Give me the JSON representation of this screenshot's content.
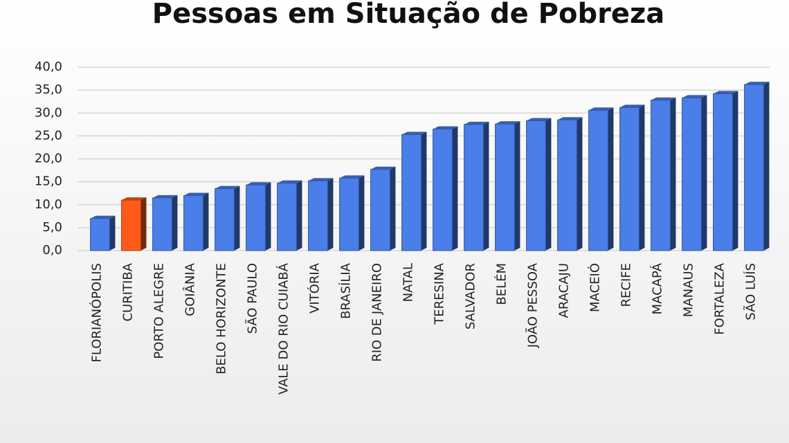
{
  "chart_data": {
    "type": "bar",
    "title": "Pessoas em Situação de Pobreza",
    "categories": [
      "FLORIANÓPOLIS",
      "CURITIBA",
      "PORTO ALEGRE",
      "GOIÂNIA",
      "BELO HORIZONTE",
      "SÃO PAULO",
      "VALE DO RIO CUIABÁ",
      "VITÓRIA",
      "BRASÍLIA",
      "RIO DE JANEIRO",
      "NATAL",
      "TERESINA",
      "SALVADOR",
      "BELÉM",
      "JOÃO PESSOA",
      "ARACAJU",
      "MACEIÓ",
      "RECIFE",
      "MACAPÁ",
      "MANAUS",
      "FORTALEZA",
      "SÃO LUÍS"
    ],
    "values": [
      7.0,
      11.0,
      11.5,
      12.0,
      13.5,
      14.3,
      14.7,
      15.2,
      15.8,
      17.7,
      25.3,
      26.5,
      27.5,
      27.6,
      28.3,
      28.5,
      30.6,
      31.2,
      32.8,
      33.3,
      34.2,
      36.2
    ],
    "colors": [
      "#4a7ee8",
      "#ff5a1a",
      "#4a7ee8",
      "#4a7ee8",
      "#4a7ee8",
      "#4a7ee8",
      "#4a7ee8",
      "#4a7ee8",
      "#4a7ee8",
      "#4a7ee8",
      "#4a7ee8",
      "#4a7ee8",
      "#4a7ee8",
      "#4a7ee8",
      "#4a7ee8",
      "#4a7ee8",
      "#4a7ee8",
      "#4a7ee8",
      "#4a7ee8",
      "#4a7ee8",
      "#4a7ee8",
      "#4a7ee8"
    ],
    "ylim": [
      0,
      40
    ],
    "yticks": [
      {
        "value": 0,
        "label": "0,0"
      },
      {
        "value": 5,
        "label": "5,0"
      },
      {
        "value": 10,
        "label": "10,0"
      },
      {
        "value": 15,
        "label": "15,0"
      },
      {
        "value": 20,
        "label": "20,0"
      },
      {
        "value": 25,
        "label": "25,0"
      },
      {
        "value": 30,
        "label": "30,0"
      },
      {
        "value": 35,
        "label": "35,0"
      },
      {
        "value": 40,
        "label": "40,0"
      }
    ],
    "grid": true
  }
}
